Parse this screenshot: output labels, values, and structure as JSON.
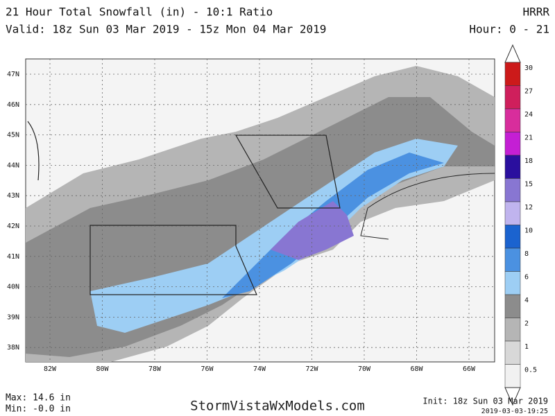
{
  "header": {
    "title": "21 Hour Total Snowfall (in) - 10:1 Ratio",
    "model": "HRRR",
    "valid": "Valid: 18z Sun 03 Mar 2019 - 15z Mon 04 Mar 2019",
    "hours": "Hour: 0 - 21"
  },
  "map": {
    "lat_labels": [
      "47N",
      "46N",
      "45N",
      "44N",
      "43N",
      "42N",
      "41N",
      "40N",
      "39N",
      "38N"
    ],
    "lon_labels": [
      "82W",
      "80W",
      "78W",
      "76W",
      "74W",
      "72W",
      "70W",
      "68W",
      "66W"
    ]
  },
  "legend": {
    "items": [
      {
        "label": "30",
        "color": "#cc1a1a"
      },
      {
        "label": "27",
        "color": "#cf1f5c"
      },
      {
        "label": "24",
        "color": "#d82d9c"
      },
      {
        "label": "21",
        "color": "#c41fd4"
      },
      {
        "label": "18",
        "color": "#2a0f9e"
      },
      {
        "label": "15",
        "color": "#8876d2"
      },
      {
        "label": "12",
        "color": "#c0b4ee"
      },
      {
        "label": "10",
        "color": "#1b63cf"
      },
      {
        "label": "8",
        "color": "#4b91e1"
      },
      {
        "label": "6",
        "color": "#9dcef4"
      },
      {
        "label": "4",
        "color": "#8c8c8c"
      },
      {
        "label": "2",
        "color": "#b5b5b5"
      },
      {
        "label": "1",
        "color": "#d8d8d8"
      },
      {
        "label": "0.5",
        "color": "#f1f1f1"
      }
    ]
  },
  "footer": {
    "max": "Max: 14.6 in",
    "min": "Min: -0.0 in",
    "site": "StormVistaWxModels.com",
    "init": "Init: 18z Sun 03 Mar 2019",
    "timestamp": "2019-03-03-19:25"
  }
}
